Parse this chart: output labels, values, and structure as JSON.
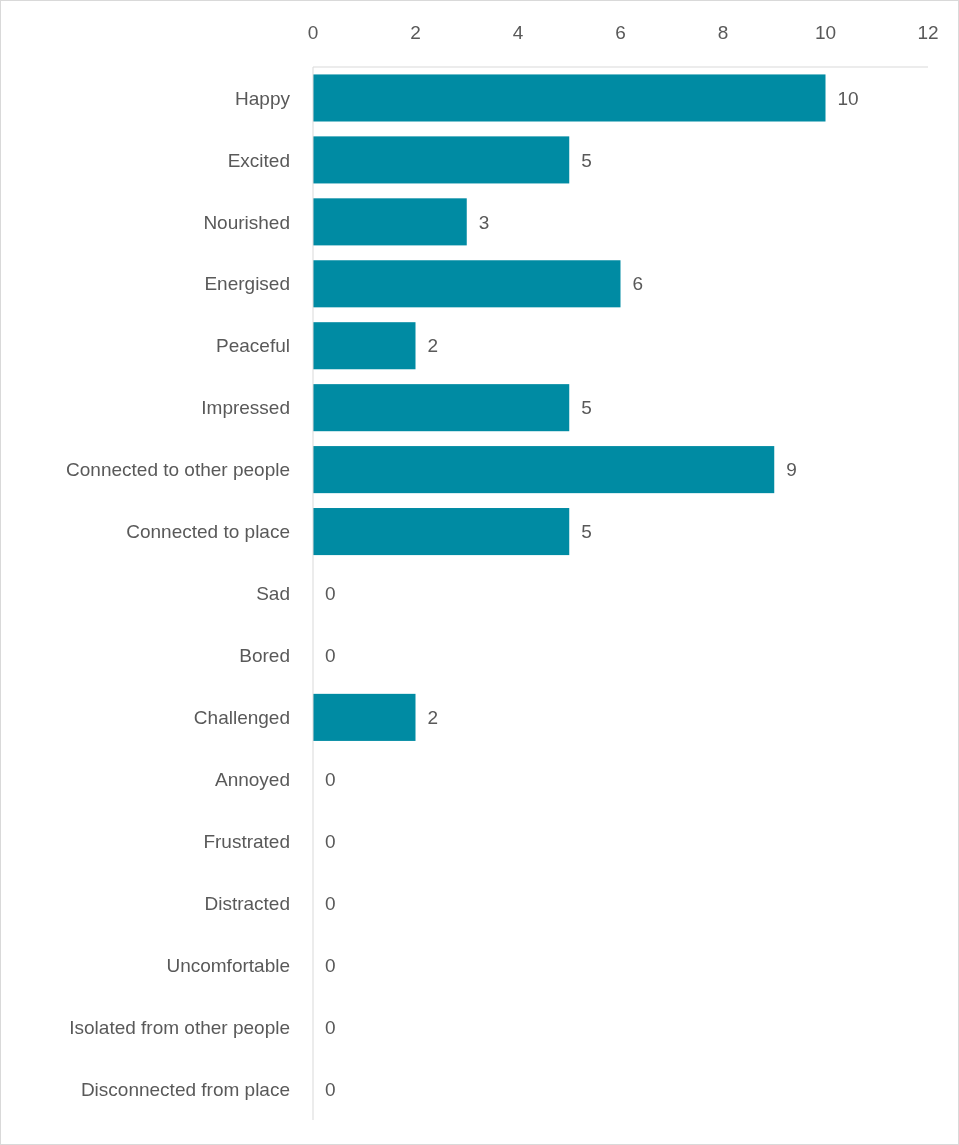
{
  "chart_data": {
    "type": "bar",
    "orientation": "horizontal",
    "categories": [
      "Happy",
      "Excited",
      "Nourished",
      "Energised",
      "Peaceful",
      "Impressed",
      "Connected to other people",
      "Connected to place",
      "Sad",
      "Bored",
      "Challenged",
      "Annoyed",
      "Frustrated",
      "Distracted",
      "Uncomfortable",
      "Isolated from other people",
      "Disconnected from place"
    ],
    "values": [
      10,
      5,
      3,
      6,
      2,
      5,
      9,
      5,
      0,
      0,
      2,
      0,
      0,
      0,
      0,
      0,
      0
    ],
    "color": "#008ba3",
    "xlim": [
      0,
      12
    ],
    "xticks": [
      0,
      2,
      4,
      6,
      8,
      10,
      12
    ],
    "data_labels": true
  }
}
